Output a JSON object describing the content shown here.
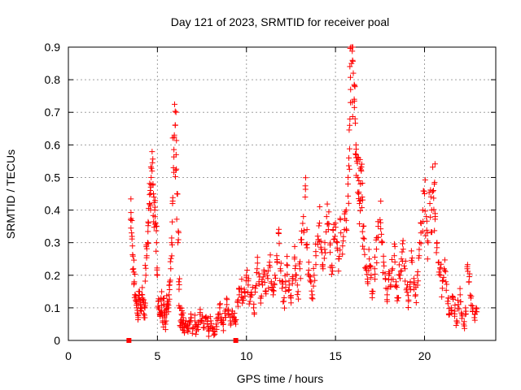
{
  "chart_data": {
    "type": "scatter",
    "title": "Day 121 of 2023, SRMTID for receiver poal",
    "xlabel": "GPS time / hours",
    "ylabel": "SRMTID / TECUs",
    "xlim": [
      0,
      24
    ],
    "ylim": [
      0,
      0.9
    ],
    "x_ticks": [
      0,
      5,
      10,
      15,
      20
    ],
    "x_tick_labels": [
      "0",
      "5",
      "10",
      "15",
      "20"
    ],
    "y_ticks": [
      0,
      0.1,
      0.2,
      0.3,
      0.4,
      0.5,
      0.6,
      0.7,
      0.8,
      0.9
    ],
    "y_tick_labels": [
      "0",
      "0.1",
      "0.2",
      "0.3",
      "0.4",
      "0.5",
      "0.6",
      "0.7",
      "0.8",
      "0.9"
    ],
    "grid": true,
    "marker": "+",
    "color": "#ff0000",
    "zero_markers": [
      {
        "x": 3.4,
        "y": 0
      },
      {
        "x": 9.4,
        "y": 0
      }
    ],
    "series": [
      {
        "name": "SRMTID",
        "points": [
          [
            3.5,
            0.37
          ],
          [
            3.55,
            0.33
          ],
          [
            3.6,
            0.29
          ],
          [
            3.65,
            0.22
          ],
          [
            3.7,
            0.18
          ],
          [
            3.75,
            0.14
          ],
          [
            3.8,
            0.12
          ],
          [
            3.85,
            0.1
          ],
          [
            3.9,
            0.08
          ],
          [
            3.95,
            0.13
          ],
          [
            4.0,
            0.15
          ],
          [
            4.05,
            0.11
          ],
          [
            4.1,
            0.09
          ],
          [
            4.15,
            0.14
          ],
          [
            4.2,
            0.12
          ],
          [
            4.25,
            0.07
          ],
          [
            4.3,
            0.1
          ],
          [
            4.35,
            0.2
          ],
          [
            4.4,
            0.26
          ],
          [
            4.45,
            0.3
          ],
          [
            4.5,
            0.36
          ],
          [
            4.55,
            0.42
          ],
          [
            4.6,
            0.46
          ],
          [
            4.65,
            0.5
          ],
          [
            4.7,
            0.52
          ],
          [
            4.75,
            0.48
          ],
          [
            4.8,
            0.44
          ],
          [
            4.85,
            0.4
          ],
          [
            4.9,
            0.36
          ],
          [
            4.95,
            0.3
          ],
          [
            5.0,
            0.2
          ],
          [
            5.05,
            0.12
          ],
          [
            5.1,
            0.1
          ],
          [
            5.15,
            0.08
          ],
          [
            5.2,
            0.13
          ],
          [
            5.25,
            0.09
          ],
          [
            5.3,
            0.06
          ],
          [
            5.35,
            0.11
          ],
          [
            5.4,
            0.07
          ],
          [
            5.45,
            0.05
          ],
          [
            5.5,
            0.08
          ],
          [
            5.55,
            0.12
          ],
          [
            5.6,
            0.1
          ],
          [
            5.65,
            0.14
          ],
          [
            5.7,
            0.18
          ],
          [
            5.75,
            0.22
          ],
          [
            5.8,
            0.3
          ],
          [
            5.85,
            0.42
          ],
          [
            5.9,
            0.53
          ],
          [
            5.95,
            0.63
          ],
          [
            6.0,
            0.66
          ],
          [
            6.05,
            0.57
          ],
          [
            6.1,
            0.45
          ],
          [
            6.15,
            0.3
          ],
          [
            6.2,
            0.18
          ],
          [
            6.25,
            0.1
          ],
          [
            6.3,
            0.06
          ],
          [
            6.35,
            0.08
          ],
          [
            6.4,
            0.05
          ],
          [
            6.45,
            0.07
          ],
          [
            6.5,
            0.04
          ],
          [
            6.6,
            0.06
          ],
          [
            6.7,
            0.03
          ],
          [
            6.8,
            0.05
          ],
          [
            6.9,
            0.07
          ],
          [
            7.0,
            0.04
          ],
          [
            7.1,
            0.06
          ],
          [
            7.2,
            0.03
          ],
          [
            7.3,
            0.05
          ],
          [
            7.4,
            0.08
          ],
          [
            7.5,
            0.06
          ],
          [
            7.6,
            0.04
          ],
          [
            7.7,
            0.07
          ],
          [
            7.8,
            0.05
          ],
          [
            7.9,
            0.03
          ],
          [
            8.0,
            0.06
          ],
          [
            8.1,
            0.04
          ],
          [
            8.2,
            0.02
          ],
          [
            8.3,
            0.05
          ],
          [
            8.4,
            0.08
          ],
          [
            8.5,
            0.1
          ],
          [
            8.6,
            0.07
          ],
          [
            8.7,
            0.05
          ],
          [
            8.8,
            0.09
          ],
          [
            8.9,
            0.11
          ],
          [
            9.0,
            0.08
          ],
          [
            9.1,
            0.06
          ],
          [
            9.2,
            0.09
          ],
          [
            9.3,
            0.07
          ],
          [
            9.4,
            0.05
          ],
          [
            9.5,
            0.12
          ],
          [
            9.6,
            0.14
          ],
          [
            9.7,
            0.16
          ],
          [
            9.8,
            0.13
          ],
          [
            9.9,
            0.15
          ],
          [
            10.0,
            0.2
          ],
          [
            10.1,
            0.17
          ],
          [
            10.2,
            0.12
          ],
          [
            10.3,
            0.14
          ],
          [
            10.4,
            0.1
          ],
          [
            10.5,
            0.16
          ],
          [
            10.6,
            0.22
          ],
          [
            10.7,
            0.18
          ],
          [
            10.8,
            0.13
          ],
          [
            10.9,
            0.17
          ],
          [
            11.0,
            0.21
          ],
          [
            11.1,
            0.15
          ],
          [
            11.2,
            0.19
          ],
          [
            11.3,
            0.24
          ],
          [
            11.4,
            0.18
          ],
          [
            11.5,
            0.14
          ],
          [
            11.6,
            0.2
          ],
          [
            11.7,
            0.26
          ],
          [
            11.8,
            0.33
          ],
          [
            11.9,
            0.22
          ],
          [
            12.0,
            0.16
          ],
          [
            12.1,
            0.12
          ],
          [
            12.2,
            0.18
          ],
          [
            12.3,
            0.23
          ],
          [
            12.4,
            0.17
          ],
          [
            12.5,
            0.13
          ],
          [
            12.6,
            0.19
          ],
          [
            12.7,
            0.25
          ],
          [
            12.8,
            0.2
          ],
          [
            12.9,
            0.15
          ],
          [
            13.0,
            0.22
          ],
          [
            13.1,
            0.3
          ],
          [
            13.2,
            0.38
          ],
          [
            13.3,
            0.44
          ],
          [
            13.4,
            0.34
          ],
          [
            13.5,
            0.24
          ],
          [
            13.6,
            0.18
          ],
          [
            13.7,
            0.14
          ],
          [
            13.8,
            0.2
          ],
          [
            13.9,
            0.26
          ],
          [
            14.0,
            0.32
          ],
          [
            14.1,
            0.36
          ],
          [
            14.2,
            0.28
          ],
          [
            14.3,
            0.22
          ],
          [
            14.4,
            0.3
          ],
          [
            14.5,
            0.38
          ],
          [
            14.6,
            0.34
          ],
          [
            14.7,
            0.27
          ],
          [
            14.8,
            0.23
          ],
          [
            14.9,
            0.31
          ],
          [
            15.0,
            0.36
          ],
          [
            15.1,
            0.3
          ],
          [
            15.2,
            0.25
          ],
          [
            15.3,
            0.33
          ],
          [
            15.4,
            0.29
          ],
          [
            15.5,
            0.34
          ],
          [
            15.6,
            0.4
          ],
          [
            15.7,
            0.48
          ],
          [
            15.75,
            0.56
          ],
          [
            15.8,
            0.66
          ],
          [
            15.85,
            0.77
          ],
          [
            15.9,
            0.85
          ],
          [
            15.95,
            0.9
          ],
          [
            16.0,
            0.82
          ],
          [
            16.05,
            0.74
          ],
          [
            16.1,
            0.68
          ],
          [
            16.15,
            0.6
          ],
          [
            16.2,
            0.55
          ],
          [
            16.25,
            0.5
          ],
          [
            16.3,
            0.45
          ],
          [
            16.35,
            0.42
          ],
          [
            16.4,
            0.48
          ],
          [
            16.45,
            0.52
          ],
          [
            16.5,
            0.44
          ],
          [
            16.55,
            0.35
          ],
          [
            16.6,
            0.28
          ],
          [
            16.7,
            0.22
          ],
          [
            16.8,
            0.18
          ],
          [
            16.9,
            0.25
          ],
          [
            17.0,
            0.2
          ],
          [
            17.1,
            0.15
          ],
          [
            17.2,
            0.22
          ],
          [
            17.3,
            0.28
          ],
          [
            17.4,
            0.35
          ],
          [
            17.5,
            0.37
          ],
          [
            17.6,
            0.3
          ],
          [
            17.7,
            0.24
          ],
          [
            17.8,
            0.19
          ],
          [
            17.9,
            0.14
          ],
          [
            18.0,
            0.2
          ],
          [
            18.1,
            0.17
          ],
          [
            18.2,
            0.22
          ],
          [
            18.3,
            0.26
          ],
          [
            18.4,
            0.18
          ],
          [
            18.5,
            0.13
          ],
          [
            18.6,
            0.2
          ],
          [
            18.7,
            0.25
          ],
          [
            18.8,
            0.28
          ],
          [
            18.9,
            0.22
          ],
          [
            19.0,
            0.16
          ],
          [
            19.1,
            0.12
          ],
          [
            19.2,
            0.18
          ],
          [
            19.3,
            0.24
          ],
          [
            19.4,
            0.19
          ],
          [
            19.5,
            0.14
          ],
          [
            19.6,
            0.2
          ],
          [
            19.7,
            0.26
          ],
          [
            19.8,
            0.33
          ],
          [
            19.9,
            0.4
          ],
          [
            20.0,
            0.45
          ],
          [
            20.1,
            0.38
          ],
          [
            20.2,
            0.3
          ],
          [
            20.3,
            0.42
          ],
          [
            20.4,
            0.4
          ],
          [
            20.5,
            0.46
          ],
          [
            20.55,
            0.48
          ],
          [
            20.6,
            0.38
          ],
          [
            20.7,
            0.3
          ],
          [
            20.8,
            0.24
          ],
          [
            20.9,
            0.2
          ],
          [
            21.0,
            0.16
          ],
          [
            21.1,
            0.22
          ],
          [
            21.2,
            0.18
          ],
          [
            21.3,
            0.12
          ],
          [
            21.4,
            0.08
          ],
          [
            21.5,
            0.1
          ],
          [
            21.6,
            0.13
          ],
          [
            21.7,
            0.09
          ],
          [
            21.8,
            0.06
          ],
          [
            21.9,
            0.11
          ],
          [
            22.0,
            0.14
          ],
          [
            22.1,
            0.08
          ],
          [
            22.2,
            0.05
          ],
          [
            22.3,
            0.1
          ],
          [
            22.4,
            0.22
          ],
          [
            22.5,
            0.18
          ],
          [
            22.6,
            0.13
          ],
          [
            22.7,
            0.09
          ],
          [
            22.8,
            0.07
          ],
          [
            22.9,
            0.1
          ]
        ]
      }
    ]
  }
}
